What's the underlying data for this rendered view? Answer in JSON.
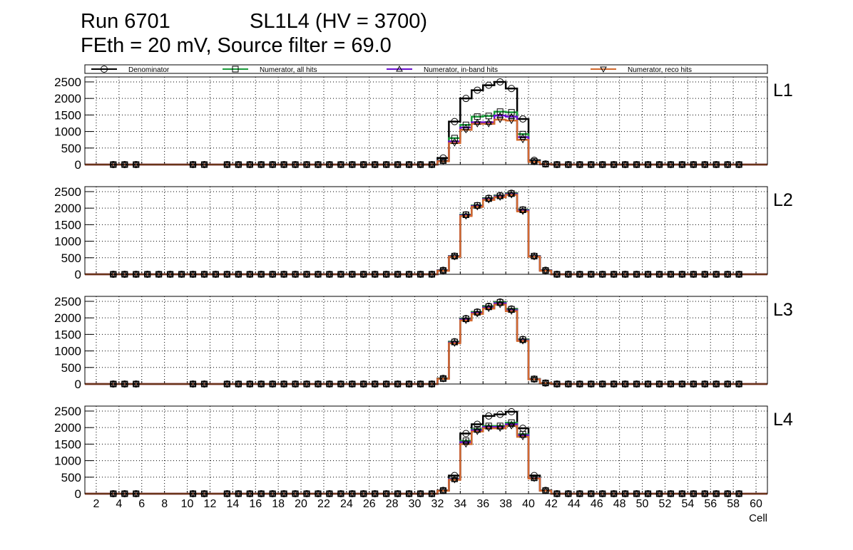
{
  "title": {
    "run": "Run 6701",
    "chamber": "SL1L4 (HV = 3700)",
    "line2": "FEth = 20 mV, Source filter = 69.0"
  },
  "colors": {
    "Denominator": "#000000",
    "Numerator, all hits": "#1a9b3a",
    "Numerator, in-band hits": "#6a0fd0",
    "Numerator, reco hits": "#d2692e"
  },
  "chart_data": {
    "type": "step-histogram",
    "xlabel": "Cell",
    "ylabel": "",
    "xlim": [
      1,
      61
    ],
    "ylim": [
      0,
      2650
    ],
    "xticks": [
      2,
      4,
      6,
      8,
      10,
      12,
      14,
      16,
      18,
      20,
      22,
      24,
      26,
      28,
      30,
      32,
      34,
      36,
      38,
      40,
      42,
      44,
      46,
      48,
      50,
      52,
      54,
      56,
      58,
      60
    ],
    "yticks": [
      0,
      500,
      1000,
      1500,
      2000,
      2500
    ],
    "legend": {
      "placement": "top",
      "entries": [
        {
          "name": "Denominator",
          "marker": "circle"
        },
        {
          "name": "Numerator, all hits",
          "marker": "square"
        },
        {
          "name": "Numerator, in-band hits",
          "marker": "triangle-up"
        },
        {
          "name": "Numerator, reco hits",
          "marker": "triangle-down"
        }
      ]
    },
    "cells_from": 32,
    "panels": [
      {
        "label": "L1",
        "series": [
          {
            "name": "Denominator",
            "values": [
              200,
              1300,
              2000,
              2250,
              2400,
              2500,
              2300,
              1380,
              130,
              20
            ]
          },
          {
            "name": "Numerator, all hits",
            "values": [
              120,
              800,
              1200,
              1450,
              1470,
              1600,
              1580,
              920,
              100,
              15
            ]
          },
          {
            "name": "Numerator, in-band hits",
            "values": [
              110,
              700,
              1120,
              1280,
              1280,
              1480,
              1450,
              830,
              90,
              12
            ]
          },
          {
            "name": "Numerator, reco hits",
            "values": [
              100,
              650,
              1050,
              1230,
              1230,
              1360,
              1330,
              750,
              80,
              10
            ]
          }
        ]
      },
      {
        "label": "L2",
        "series": [
          {
            "name": "Denominator",
            "values": [
              120,
              550,
              1800,
              2080,
              2300,
              2380,
              2450,
              1950,
              550,
              120
            ]
          },
          {
            "name": "Numerator, all hits",
            "values": [
              115,
              550,
              1800,
              2080,
              2290,
              2370,
              2440,
              1950,
              550,
              115
            ]
          },
          {
            "name": "Numerator, in-band hits",
            "values": [
              110,
              540,
              1780,
              2060,
              2270,
              2350,
              2420,
              1930,
              540,
              110
            ]
          },
          {
            "name": "Numerator, reco hits",
            "values": [
              105,
              530,
              1760,
              2040,
              2250,
              2330,
              2400,
              1900,
              530,
              105
            ]
          }
        ]
      },
      {
        "label": "L3",
        "series": [
          {
            "name": "Denominator",
            "values": [
              170,
              1280,
              1980,
              2180,
              2350,
              2480,
              2270,
              1350,
              150,
              30
            ]
          },
          {
            "name": "Numerator, all hits",
            "values": [
              165,
              1270,
              1970,
              2170,
              2340,
              2470,
              2260,
              1340,
              150,
              30
            ]
          },
          {
            "name": "Numerator, in-band hits",
            "values": [
              160,
              1250,
              1950,
              2150,
              2310,
              2440,
              2230,
              1320,
              145,
              28
            ]
          },
          {
            "name": "Numerator, reco hits",
            "values": [
              155,
              1230,
              1920,
              2120,
              2280,
              2400,
              2200,
              1300,
              140,
              25
            ]
          }
        ]
      },
      {
        "label": "L4",
        "series": [
          {
            "name": "Denominator",
            "values": [
              100,
              550,
              1820,
              2100,
              2350,
              2400,
              2480,
              1980,
              550,
              100
            ]
          },
          {
            "name": "Numerator, all hits",
            "values": [
              95,
              450,
              1600,
              1950,
              2050,
              2050,
              2150,
              1800,
              480,
              95
            ]
          },
          {
            "name": "Numerator, in-band hits",
            "values": [
              92,
              440,
              1560,
              1920,
              2020,
              2020,
              2100,
              1770,
              470,
              92
            ]
          },
          {
            "name": "Numerator, reco hits",
            "values": [
              90,
              420,
              1500,
              1880,
              1980,
              1980,
              2050,
              1720,
              460,
              90
            ]
          }
        ]
      }
    ]
  }
}
